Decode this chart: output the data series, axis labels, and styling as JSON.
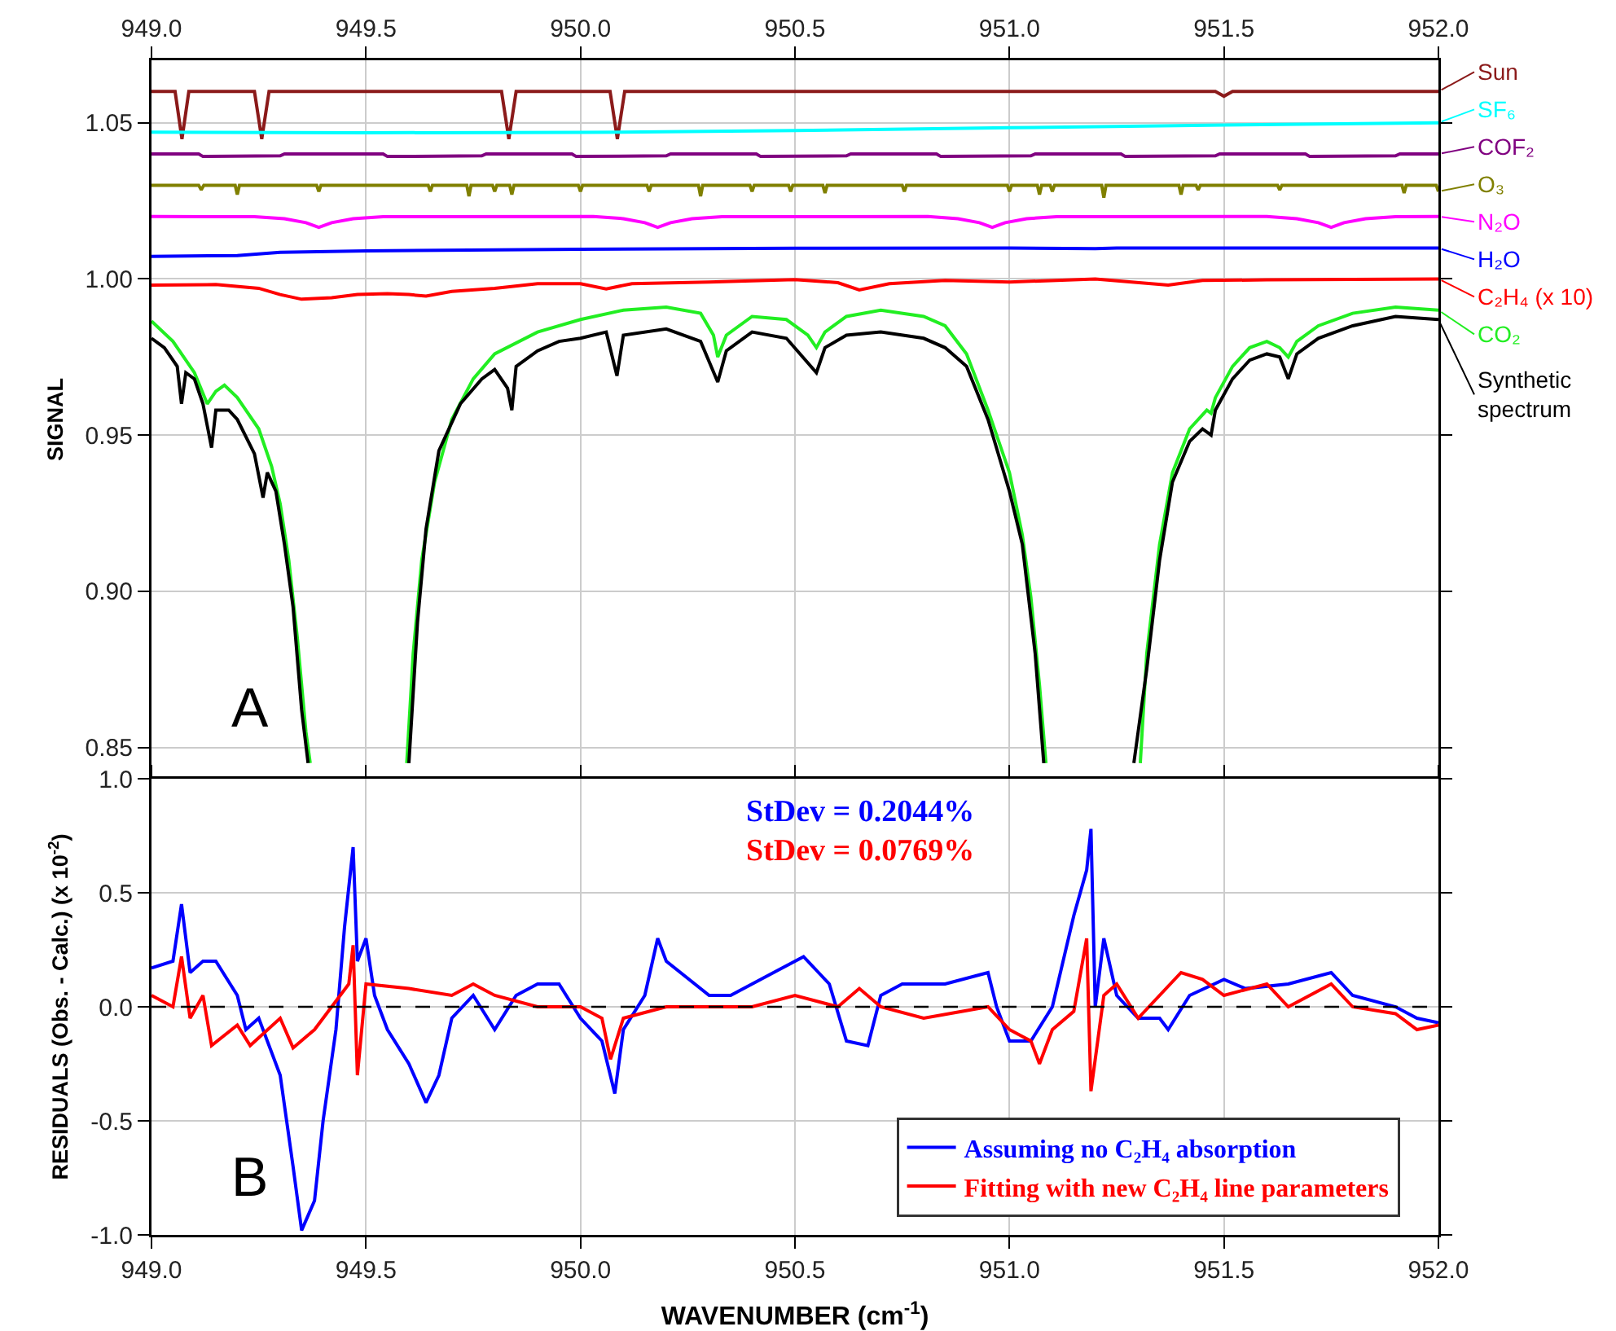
{
  "chart_data": [
    {
      "type": "line",
      "ylabel": "SIGNAL",
      "legend": "right",
      "grid": true,
      "tick_labels": "y",
      "xlim": [
        949.0,
        952.0
      ],
      "x2lim": [
        949.0,
        952.0
      ],
      "x2ticks": [
        {
          "value": 949.0,
          "label": "949.0"
        },
        {
          "value": 949.5,
          "label": "949.5"
        },
        {
          "value": 950.0,
          "label": "950.0"
        },
        {
          "value": 950.5,
          "label": "950.5"
        },
        {
          "value": 951.0,
          "label": "951.0"
        },
        {
          "value": 951.5,
          "label": "951.5"
        },
        {
          "value": 952.0,
          "label": "952.0"
        }
      ],
      "ylim": [
        0.84,
        1.07
      ],
      "yticks": [
        {
          "value": 0.85,
          "label": "0.85"
        },
        {
          "value": 0.9,
          "label": "0.90"
        },
        {
          "value": 0.95,
          "label": "0.95"
        },
        {
          "value": 1.0,
          "label": "1.00"
        },
        {
          "value": 1.05,
          "label": "1.05"
        }
      ],
      "annotations": [
        "A"
      ],
      "series": [
        {
          "name": "Sun",
          "color": "#8b1a1a",
          "x": [
            949.0,
            949.055,
            949.071,
            949.087,
            949.24,
            949.257,
            949.274,
            949.816,
            949.833,
            949.85,
            950.069,
            950.086,
            950.103,
            951.48,
            951.5,
            951.52,
            952.0
          ],
          "values": [
            1.06,
            1.06,
            1.0448,
            1.06,
            1.06,
            1.0448,
            1.06,
            1.06,
            1.0448,
            1.06,
            1.06,
            1.0448,
            1.06,
            1.06,
            1.0585,
            1.06,
            1.06
          ]
        },
        {
          "name": "SF₆",
          "color": "#00ffff",
          "x": [
            949.0,
            949.5,
            950.0,
            950.5,
            951.0,
            951.5,
            952.0
          ],
          "values": [
            1.047,
            1.0468,
            1.0469,
            1.0475,
            1.0484,
            1.0493,
            1.05
          ]
        },
        {
          "name": "COF₂",
          "color": "#800080",
          "x": [
            949.0,
            949.11,
            949.12,
            949.3,
            949.31,
            949.54,
            949.55,
            949.77,
            949.78,
            949.98,
            949.99,
            950.2,
            950.21,
            950.41,
            950.42,
            950.62,
            950.63,
            950.83,
            950.84,
            951.05,
            951.06,
            951.26,
            951.27,
            951.48,
            951.49,
            951.69,
            951.7,
            951.9,
            951.91,
            952.0
          ],
          "values": [
            1.04,
            1.04,
            1.0392,
            1.0394,
            1.04,
            1.04,
            1.0392,
            1.0394,
            1.04,
            1.04,
            1.0392,
            1.0394,
            1.04,
            1.04,
            1.0392,
            1.0394,
            1.04,
            1.04,
            1.0392,
            1.0394,
            1.04,
            1.04,
            1.0392,
            1.0394,
            1.04,
            1.04,
            1.0392,
            1.0394,
            1.04,
            1.04
          ]
        },
        {
          "name": "O₃",
          "color": "#808000",
          "x": [
            949.0,
            949.11,
            949.116,
            949.122,
            949.195,
            949.2,
            949.205,
            949.385,
            949.39,
            949.395,
            949.645,
            949.65,
            949.655,
            949.735,
            949.74,
            949.745,
            949.795,
            949.8,
            949.805,
            949.835,
            949.84,
            949.845,
            949.995,
            950.0,
            950.005,
            950.155,
            950.16,
            950.165,
            950.275,
            950.28,
            950.285,
            950.395,
            950.4,
            950.405,
            950.485,
            950.49,
            950.495,
            950.565,
            950.57,
            950.575,
            950.75,
            950.755,
            950.76,
            950.995,
            951.0,
            951.005,
            951.065,
            951.07,
            951.075,
            951.095,
            951.1,
            951.105,
            951.215,
            951.22,
            951.225,
            951.395,
            951.4,
            951.405,
            951.435,
            951.44,
            951.445,
            951.625,
            951.63,
            951.635,
            951.915,
            951.92,
            951.925,
            951.995,
            952.0
          ],
          "values": [
            1.03,
            1.03,
            1.0285,
            1.03,
            1.03,
            1.027,
            1.03,
            1.03,
            1.028,
            1.03,
            1.03,
            1.028,
            1.03,
            1.03,
            1.0265,
            1.03,
            1.03,
            1.028,
            1.03,
            1.03,
            1.027,
            1.03,
            1.03,
            1.028,
            1.03,
            1.03,
            1.028,
            1.03,
            1.03,
            1.0265,
            1.03,
            1.03,
            1.028,
            1.03,
            1.03,
            1.028,
            1.03,
            1.03,
            1.0275,
            1.03,
            1.03,
            1.028,
            1.03,
            1.03,
            1.028,
            1.03,
            1.03,
            1.027,
            1.03,
            1.03,
            1.028,
            1.03,
            1.03,
            1.026,
            1.03,
            1.03,
            1.027,
            1.03,
            1.03,
            1.0285,
            1.03,
            1.03,
            1.0285,
            1.03,
            1.03,
            1.0275,
            1.03,
            1.03,
            1.028
          ]
        },
        {
          "name": "N₂O",
          "color": "#ff00ff",
          "x": [
            949.0,
            949.24,
            949.31,
            949.36,
            949.39,
            949.42,
            949.47,
            949.54,
            950.03,
            950.1,
            950.15,
            950.18,
            950.21,
            950.26,
            950.33,
            950.81,
            950.88,
            950.93,
            950.96,
            950.99,
            951.04,
            951.11,
            951.6,
            951.67,
            951.72,
            951.75,
            951.78,
            951.83,
            951.9,
            952.0
          ],
          "values": [
            1.02,
            1.0199,
            1.0193,
            1.018,
            1.0165,
            1.018,
            1.0193,
            1.0199,
            1.02,
            1.0193,
            1.018,
            1.0165,
            1.018,
            1.0193,
            1.0199,
            1.02,
            1.0193,
            1.018,
            1.0165,
            1.018,
            1.0193,
            1.0199,
            1.02,
            1.0193,
            1.018,
            1.0165,
            1.018,
            1.0193,
            1.0199,
            1.02
          ]
        },
        {
          "name": "H₂O",
          "color": "#0000ff",
          "x": [
            949.0,
            949.2,
            949.3,
            949.5,
            950.0,
            950.5,
            951.0,
            951.2,
            951.25,
            952.0
          ],
          "values": [
            1.0072,
            1.0075,
            1.0085,
            1.009,
            1.0095,
            1.0098,
            1.0099,
            1.0097,
            1.0099,
            1.0099
          ]
        },
        {
          "name": "C₂H₄ (x 10)",
          "color": "#ff0000",
          "x": [
            949.0,
            949.15,
            949.25,
            949.3,
            949.35,
            949.42,
            949.48,
            949.55,
            949.6,
            949.64,
            949.7,
            949.8,
            949.9,
            950.0,
            950.06,
            950.12,
            950.3,
            950.5,
            950.6,
            950.65,
            950.72,
            950.85,
            951.0,
            951.2,
            951.37,
            951.45,
            951.6,
            952.0
          ],
          "values": [
            0.998,
            0.9982,
            0.997,
            0.995,
            0.9935,
            0.994,
            0.995,
            0.9953,
            0.995,
            0.9945,
            0.996,
            0.997,
            0.9985,
            0.9985,
            0.9968,
            0.9985,
            0.999,
            0.9998,
            0.9988,
            0.9965,
            0.9985,
            0.9995,
            0.999,
            1.0,
            0.998,
            0.9995,
            0.9997,
            1.0
          ]
        },
        {
          "name": "CO₂",
          "color": "#22ee22",
          "x": [
            949.0,
            949.05,
            949.1,
            949.13,
            949.15,
            949.17,
            949.2,
            949.25,
            949.28,
            949.3,
            949.32,
            949.34,
            949.36,
            949.37,
            949.48,
            949.595,
            949.61,
            949.63,
            949.66,
            949.7,
            949.75,
            949.8,
            949.9,
            950.0,
            950.1,
            950.2,
            950.28,
            950.31,
            950.32,
            950.34,
            950.4,
            950.48,
            950.53,
            950.55,
            950.57,
            950.62,
            950.7,
            950.8,
            950.85,
            950.9,
            950.95,
            951.0,
            951.03,
            951.05,
            951.07,
            951.085,
            951.2,
            951.305,
            951.32,
            951.35,
            951.38,
            951.42,
            951.46,
            951.47,
            951.48,
            951.52,
            951.56,
            951.6,
            951.63,
            951.65,
            951.67,
            951.72,
            951.8,
            951.9,
            952.0
          ],
          "values": [
            0.9865,
            0.98,
            0.97,
            0.96,
            0.964,
            0.966,
            0.962,
            0.952,
            0.94,
            0.928,
            0.91,
            0.885,
            0.855,
            0.845,
            null,
            0.845,
            0.88,
            0.91,
            0.935,
            0.955,
            0.968,
            0.976,
            0.983,
            0.987,
            0.99,
            0.991,
            0.989,
            0.982,
            0.975,
            0.982,
            0.988,
            0.987,
            0.982,
            0.978,
            0.983,
            0.988,
            0.99,
            0.988,
            0.985,
            0.976,
            0.958,
            0.938,
            0.918,
            0.898,
            0.87,
            0.845,
            null,
            0.845,
            0.88,
            0.915,
            0.938,
            0.952,
            0.958,
            0.957,
            0.962,
            0.972,
            0.978,
            0.98,
            0.978,
            0.975,
            0.98,
            0.985,
            0.989,
            0.991,
            0.99
          ]
        },
        {
          "name": "Synthetic spectrum",
          "color": "#000000",
          "x": [
            949.0,
            949.03,
            949.06,
            949.07,
            949.08,
            949.1,
            949.12,
            949.14,
            949.15,
            949.18,
            949.2,
            949.24,
            949.26,
            949.27,
            949.29,
            949.31,
            949.33,
            949.35,
            949.365,
            949.48,
            949.6,
            949.62,
            949.64,
            949.67,
            949.72,
            949.77,
            949.8,
            949.83,
            949.84,
            949.85,
            949.9,
            949.95,
            950.0,
            950.06,
            950.085,
            950.1,
            950.2,
            950.28,
            950.32,
            950.34,
            950.4,
            950.48,
            950.55,
            950.57,
            950.62,
            950.7,
            950.8,
            950.85,
            950.9,
            950.95,
            951.0,
            951.03,
            951.06,
            951.08,
            951.2,
            951.29,
            951.32,
            951.35,
            951.38,
            951.42,
            951.45,
            951.47,
            951.48,
            951.52,
            951.56,
            951.6,
            951.63,
            951.65,
            951.67,
            951.72,
            951.8,
            951.9,
            952.0
          ],
          "values": [
            0.981,
            0.978,
            0.972,
            0.96,
            0.97,
            0.968,
            0.96,
            0.946,
            0.958,
            0.958,
            0.955,
            0.944,
            0.93,
            0.938,
            0.932,
            0.915,
            0.895,
            0.862,
            0.845,
            null,
            0.845,
            0.89,
            0.92,
            0.945,
            0.96,
            0.968,
            0.971,
            0.965,
            0.958,
            0.972,
            0.977,
            0.98,
            0.981,
            0.983,
            0.969,
            0.982,
            0.984,
            0.98,
            0.967,
            0.977,
            0.983,
            0.981,
            0.97,
            0.978,
            0.982,
            0.983,
            0.981,
            0.978,
            0.972,
            0.955,
            0.932,
            0.915,
            0.88,
            0.845,
            null,
            0.845,
            0.875,
            0.91,
            0.935,
            0.948,
            0.952,
            0.95,
            0.958,
            0.968,
            0.974,
            0.976,
            0.975,
            0.968,
            0.976,
            0.981,
            0.985,
            0.988,
            0.987
          ]
        }
      ]
    },
    {
      "type": "line",
      "xlabel": "WAVENUMBER (cm$^{-1}$)",
      "ylabel": "RESIDUALS (Obs. - Calc.) (x 10$^{-2}$)",
      "legend": "bottom right",
      "grid": true,
      "xlim": [
        949.0,
        952.0
      ],
      "xticks": [
        {
          "value": 949.0,
          "label": "949.0"
        },
        949.5,
        {
          "value": 950.0,
          "label": "950.0"
        },
        950.5,
        {
          "value": 951.0,
          "label": "951.0"
        },
        951.5,
        {
          "value": 952.0,
          "label": "952.0"
        }
      ],
      "ylim": [
        -1.0,
        1.0
      ],
      "yticks": [
        {
          "value": -1.0,
          "label": "-1.0"
        },
        -0.5,
        {
          "value": 0,
          "label": "0.0"
        },
        0.5,
        {
          "value": 1.0,
          "label": "1.0"
        }
      ],
      "ref_lines": [
        {
          "axis": "y",
          "value": 0,
          "color": "#000000",
          "line_style": "dashed"
        }
      ],
      "annotations": [
        "StDev = 0.2044%",
        "StDev = 0.0769%",
        "B"
      ],
      "series": [
        {
          "name": "Assuming no C₂H₄ absorption",
          "color": "#0000ff",
          "x": [
            949.0,
            949.05,
            949.07,
            949.09,
            949.12,
            949.15,
            949.2,
            949.22,
            949.25,
            949.3,
            949.33,
            949.35,
            949.38,
            949.4,
            949.43,
            949.45,
            949.47,
            949.48,
            949.5,
            949.52,
            949.55,
            949.6,
            949.64,
            949.67,
            949.7,
            949.75,
            949.8,
            949.85,
            949.9,
            949.95,
            950.0,
            950.05,
            950.08,
            950.1,
            950.15,
            950.18,
            950.2,
            950.3,
            950.35,
            950.45,
            950.52,
            950.58,
            950.62,
            950.67,
            950.7,
            950.75,
            950.85,
            950.95,
            950.97,
            951.0,
            951.05,
            951.1,
            951.15,
            951.18,
            951.19,
            951.2,
            951.22,
            951.25,
            951.3,
            951.35,
            951.37,
            951.42,
            951.5,
            951.55,
            951.65,
            951.75,
            951.8,
            951.9,
            951.95,
            952.0
          ],
          "values": [
            0.17,
            0.2,
            0.45,
            0.15,
            0.2,
            0.2,
            0.05,
            -0.1,
            -0.05,
            -0.3,
            -0.7,
            -0.98,
            -0.85,
            -0.5,
            -0.1,
            0.35,
            0.7,
            0.2,
            0.3,
            0.05,
            -0.1,
            -0.25,
            -0.42,
            -0.3,
            -0.05,
            0.05,
            -0.1,
            0.05,
            0.1,
            0.1,
            -0.05,
            -0.15,
            -0.38,
            -0.1,
            0.05,
            0.3,
            0.2,
            0.05,
            0.05,
            0.15,
            0.22,
            0.1,
            -0.15,
            -0.17,
            0.05,
            0.1,
            0.1,
            0.15,
            0.0,
            -0.15,
            -0.15,
            0.0,
            0.4,
            0.6,
            0.78,
            0.0,
            0.3,
            0.05,
            -0.05,
            -0.05,
            -0.1,
            0.05,
            0.12,
            0.08,
            0.1,
            0.15,
            0.05,
            0.0,
            -0.05,
            -0.07
          ]
        },
        {
          "name": "Fitting with new C₂H₄ line parameters",
          "color": "#ff0000",
          "x": [
            949.0,
            949.05,
            949.07,
            949.09,
            949.12,
            949.14,
            949.2,
            949.23,
            949.3,
            949.33,
            949.38,
            949.42,
            949.46,
            949.47,
            949.48,
            949.5,
            949.6,
            949.7,
            949.75,
            949.8,
            949.9,
            950.0,
            950.05,
            950.07,
            950.1,
            950.2,
            950.3,
            950.4,
            950.5,
            950.6,
            950.65,
            950.7,
            950.8,
            950.95,
            951.0,
            951.05,
            951.07,
            951.1,
            951.15,
            951.18,
            951.19,
            951.22,
            951.25,
            951.3,
            951.4,
            951.45,
            951.5,
            951.6,
            951.65,
            951.75,
            951.8,
            951.9,
            951.95,
            952.0
          ],
          "values": [
            0.05,
            0.0,
            0.22,
            -0.05,
            0.05,
            -0.17,
            -0.08,
            -0.17,
            -0.05,
            -0.18,
            -0.1,
            0.0,
            0.1,
            0.27,
            -0.3,
            0.1,
            0.08,
            0.05,
            0.1,
            0.05,
            0.0,
            0.0,
            -0.05,
            -0.23,
            -0.05,
            0.0,
            0.0,
            0.0,
            0.05,
            0.0,
            0.08,
            0.0,
            -0.05,
            0.0,
            -0.1,
            -0.15,
            -0.25,
            -0.1,
            -0.02,
            0.3,
            -0.37,
            0.05,
            0.1,
            -0.05,
            0.15,
            0.12,
            0.05,
            0.1,
            0.0,
            0.1,
            0.0,
            -0.03,
            -0.1,
            -0.08
          ]
        }
      ]
    }
  ]
}
